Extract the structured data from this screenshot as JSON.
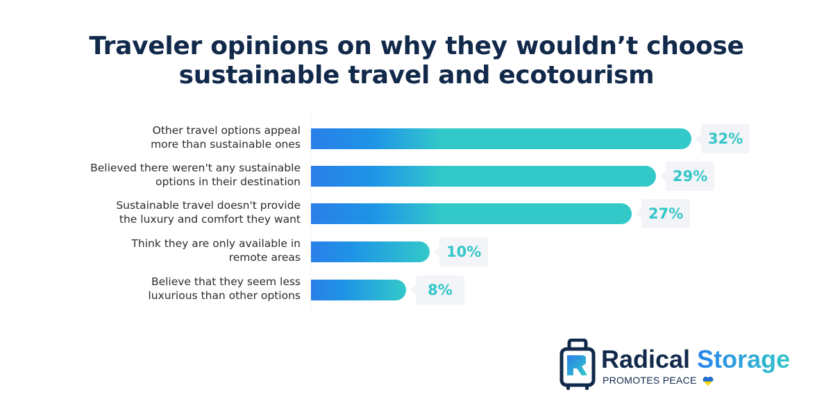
{
  "title": {
    "line1": "Traveler opinions on why they wouldn’t choose",
    "line2": "sustainable travel and ecotourism"
  },
  "colors": {
    "title": "#11294a",
    "bar_gradient_start": "#2a7fe8",
    "bar_gradient_mid": "#1e94e6",
    "bar_gradient_end": "#33c9c9",
    "value_label": "#33c6c8",
    "value_badge_bg": "#f2f4f8",
    "brand_dark": "#11294a"
  },
  "chart_data": {
    "type": "bar",
    "orientation": "horizontal",
    "title": "Traveler opinions on why they wouldn’t choose sustainable travel and ecotourism",
    "xlabel": "",
    "ylabel": "",
    "unit": "%",
    "grid": false,
    "legend": null,
    "xlim": [
      0,
      32
    ],
    "categories": [
      "Other travel options appeal more than sustainable ones",
      "Believed there weren't any sustainable options in their destination",
      "Sustainable travel doesn't provide the luxury and comfort they want",
      "Think they are only available in remote areas",
      "Believe that they seem less luxurious than other options"
    ],
    "values": [
      32,
      29,
      27,
      10,
      8
    ],
    "value_labels": [
      "32%",
      "29%",
      "27%",
      "10%",
      "8%"
    ]
  },
  "rows": [
    {
      "label_line1": "Other travel options appeal",
      "label_line2": "more than sustainable ones",
      "value_label": "32%"
    },
    {
      "label_line1": "Believed there weren't any sustainable",
      "label_line2": "options in their destination",
      "value_label": "29%"
    },
    {
      "label_line1": "Sustainable travel doesn't provide",
      "label_line2": "the luxury and comfort they want",
      "value_label": "27%"
    },
    {
      "label_line1": "Think they are only available in",
      "label_line2": "remote areas",
      "value_label": "10%"
    },
    {
      "label_line1": "Believe that they seem less",
      "label_line2": "luxurious than other options",
      "value_label": "8%"
    }
  ],
  "logo": {
    "word1": "Radical",
    "word2": "Storage",
    "tagline": "PROMOTES PEACE",
    "icon": "suitcase-icon",
    "tagline_icon": "ukraine-heart-icon"
  }
}
